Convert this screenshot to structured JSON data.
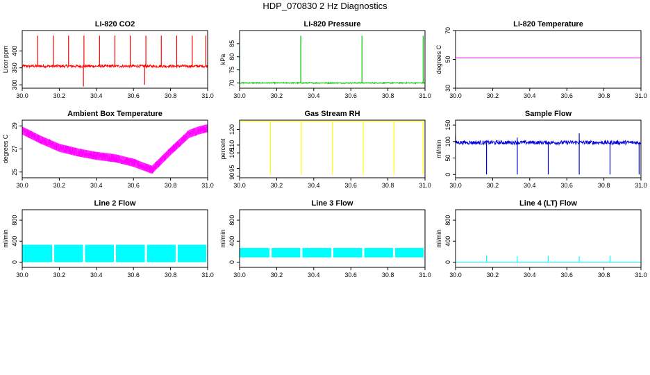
{
  "figure": {
    "title": "HDP_070830  2 Hz Diagnostics"
  },
  "chart_data": [
    {
      "type": "line",
      "title": "Li-820 CO2",
      "xlabel": "",
      "ylabel": "Licor ppm",
      "xlim": [
        30.0,
        31.0
      ],
      "ylim": [
        290,
        460
      ],
      "x_ticks": [
        30.0,
        30.2,
        30.4,
        30.6,
        30.8,
        31.0
      ],
      "x_tick_labels": [
        "30.0",
        "30.2",
        "30.4",
        "30.6",
        "30.8",
        "31.0"
      ],
      "y_ticks": [
        300,
        350,
        400
      ],
      "y_tick_labels": [
        "300",
        "350",
        "400"
      ],
      "color": "#ff0000",
      "series": [
        {
          "baseline": 355,
          "noise": 4,
          "spikes": [
            [
              30.083,
              445
            ],
            [
              30.167,
              445
            ],
            [
              30.25,
              445
            ],
            [
              30.333,
              445
            ],
            [
              30.417,
              445
            ],
            [
              30.5,
              445
            ],
            [
              30.583,
              445
            ],
            [
              30.667,
              445
            ],
            [
              30.75,
              445
            ],
            [
              30.833,
              445
            ],
            [
              30.917,
              445
            ],
            [
              30.99,
              445
            ],
            [
              30.33,
              295
            ],
            [
              30.66,
              300
            ]
          ],
          "points": [
            [
              30.0,
              355
            ],
            [
              31.0,
              355
            ]
          ]
        }
      ]
    },
    {
      "type": "line",
      "title": "Li-820 Pressure",
      "xlabel": "",
      "ylabel": "kPa",
      "xlim": [
        30.0,
        31.0
      ],
      "ylim": [
        68,
        90
      ],
      "x_ticks": [
        30.0,
        30.2,
        30.4,
        30.6,
        30.8,
        31.0
      ],
      "x_tick_labels": [
        "30.0",
        "30.2",
        "30.4",
        "30.6",
        "30.8",
        "31.0"
      ],
      "y_ticks": [
        70,
        75,
        80,
        85
      ],
      "y_tick_labels": [
        "70",
        "75",
        "80",
        "85"
      ],
      "color": "#00bb00",
      "series": [
        {
          "baseline": 70,
          "noise": 0.2,
          "spikes": [
            [
              30.0,
              84
            ],
            [
              30.33,
              88
            ],
            [
              30.66,
              88
            ],
            [
              30.99,
              88
            ]
          ],
          "points": [
            [
              30.0,
              70
            ],
            [
              31.0,
              70
            ]
          ]
        }
      ]
    },
    {
      "type": "line",
      "title": "Li-820 Temperature",
      "xlabel": "",
      "ylabel": "degrees C",
      "xlim": [
        30.0,
        31.0
      ],
      "ylim": [
        30,
        70
      ],
      "x_ticks": [
        30.0,
        30.2,
        30.4,
        30.6,
        30.8,
        31.0
      ],
      "x_tick_labels": [
        "30.0",
        "30.2",
        "30.4",
        "30.6",
        "30.8",
        "31.0"
      ],
      "y_ticks": [
        30,
        50,
        70
      ],
      "y_tick_labels": [
        "30",
        "50",
        "70"
      ],
      "color": "#ff00ff",
      "series": [
        {
          "baseline": 51,
          "noise": 0,
          "spikes": [],
          "points": [
            [
              30.0,
              51
            ],
            [
              31.0,
              51
            ]
          ]
        }
      ]
    },
    {
      "type": "line",
      "title": "Ambient Box Temperature",
      "xlabel": "",
      "ylabel": "degrees C",
      "xlim": [
        30.0,
        31.0
      ],
      "ylim": [
        24.5,
        29.5
      ],
      "x_ticks": [
        30.0,
        30.2,
        30.4,
        30.6,
        30.8,
        31.0
      ],
      "x_tick_labels": [
        "30.0",
        "30.2",
        "30.4",
        "30.6",
        "30.8",
        "31.0"
      ],
      "y_ticks": [
        25,
        27,
        29
      ],
      "y_tick_labels": [
        "25",
        "27",
        "29"
      ],
      "color": "#ff00ff",
      "series": [
        {
          "noise": 0.35,
          "spikes": [],
          "points": [
            [
              30.0,
              28.6
            ],
            [
              30.1,
              27.8
            ],
            [
              30.2,
              27.1
            ],
            [
              30.3,
              26.7
            ],
            [
              30.4,
              26.4
            ],
            [
              30.5,
              26.2
            ],
            [
              30.6,
              25.8
            ],
            [
              30.7,
              25.2
            ],
            [
              30.8,
              26.8
            ],
            [
              30.9,
              28.3
            ],
            [
              30.95,
              28.6
            ],
            [
              31.0,
              28.8
            ]
          ]
        }
      ]
    },
    {
      "type": "line",
      "title": "Gas Stream RH",
      "xlabel": "",
      "ylabel": "percent",
      "xlim": [
        30.0,
        31.0
      ],
      "ylim": [
        89,
        126
      ],
      "x_ticks": [
        30.0,
        30.2,
        30.4,
        30.6,
        30.8,
        31.0
      ],
      "x_tick_labels": [
        "30.0",
        "30.2",
        "30.4",
        "30.6",
        "30.8",
        "31.0"
      ],
      "y_ticks": [
        90,
        95,
        105,
        110,
        120
      ],
      "y_tick_labels": [
        "90",
        "95",
        "105",
        "110",
        "120"
      ],
      "color": "#ffff00",
      "series": [
        {
          "baseline": 125,
          "noise": 0,
          "spikes": [
            [
              30.167,
              91
            ],
            [
              30.333,
              91
            ],
            [
              30.5,
              91
            ],
            [
              30.667,
              91
            ],
            [
              30.833,
              91
            ],
            [
              30.99,
              91
            ]
          ],
          "points": [
            [
              30.0,
              125
            ],
            [
              31.0,
              125
            ]
          ]
        }
      ]
    },
    {
      "type": "line",
      "title": "Sample Flow",
      "xlabel": "",
      "ylabel": "ml/min",
      "xlim": [
        30.0,
        31.0
      ],
      "ylim": [
        -10,
        165
      ],
      "x_ticks": [
        30.0,
        30.2,
        30.4,
        30.6,
        30.8,
        31.0
      ],
      "x_tick_labels": [
        "30.0",
        "30.2",
        "30.4",
        "30.6",
        "30.8",
        "31.0"
      ],
      "y_ticks": [
        0,
        50,
        100,
        150
      ],
      "y_tick_labels": [
        "0",
        "50",
        "100",
        "150"
      ],
      "color": "#0000dd",
      "series": [
        {
          "baseline": 97,
          "noise": 6,
          "spikes": [
            [
              30.167,
              0
            ],
            [
              30.333,
              0
            ],
            [
              30.5,
              0
            ],
            [
              30.667,
              0
            ],
            [
              30.833,
              0
            ],
            [
              30.99,
              0
            ],
            [
              30.0,
              118
            ],
            [
              30.333,
              112
            ],
            [
              30.667,
              125
            ]
          ],
          "points": [
            [
              30.0,
              97
            ],
            [
              31.0,
              97
            ]
          ]
        }
      ]
    },
    {
      "type": "line",
      "title": "Line 2 Flow",
      "xlabel": "",
      "ylabel": "ml/min",
      "xlim": [
        30.0,
        31.0
      ],
      "ylim": [
        -100,
        1000
      ],
      "x_ticks": [
        30.0,
        30.2,
        30.4,
        30.6,
        30.8,
        31.0
      ],
      "x_tick_labels": [
        "30.0",
        "30.2",
        "30.4",
        "30.6",
        "30.8",
        "31.0"
      ],
      "y_ticks": [
        0,
        400,
        800
      ],
      "y_tick_labels": [
        "0",
        "400",
        "800"
      ],
      "color": "#00ffff",
      "series": [
        {
          "band": [
            0,
            330
          ],
          "gaps": [
            30.167,
            30.333,
            30.5,
            30.667,
            30.833
          ],
          "spikes": []
        }
      ]
    },
    {
      "type": "line",
      "title": "Line 3 Flow",
      "xlabel": "",
      "ylabel": "ml/min",
      "xlim": [
        30.0,
        31.0
      ],
      "ylim": [
        -100,
        1000
      ],
      "x_ticks": [
        30.0,
        30.2,
        30.4,
        30.6,
        30.8,
        31.0
      ],
      "x_tick_labels": [
        "30.0",
        "30.2",
        "30.4",
        "30.6",
        "30.8",
        "31.0"
      ],
      "y_ticks": [
        0,
        400,
        800
      ],
      "y_tick_labels": [
        "0",
        "400",
        "800"
      ],
      "color": "#00ffff",
      "series": [
        {
          "band": [
            90,
            270
          ],
          "gaps": [
            30.167,
            30.333,
            30.5,
            30.667,
            30.833
          ],
          "spikes": []
        }
      ]
    },
    {
      "type": "line",
      "title": "Line 4 (LT) Flow",
      "xlabel": "",
      "ylabel": "ml/min",
      "xlim": [
        30.0,
        31.0
      ],
      "ylim": [
        -100,
        1000
      ],
      "x_ticks": [
        30.0,
        30.2,
        30.4,
        30.6,
        30.8,
        31.0
      ],
      "x_tick_labels": [
        "30.0",
        "30.2",
        "30.4",
        "30.6",
        "30.8",
        "31.0"
      ],
      "y_ticks": [
        0,
        400,
        800
      ],
      "y_tick_labels": [
        "0",
        "400",
        "800"
      ],
      "color": "#00ffff",
      "series": [
        {
          "baseline": 0,
          "noise": 0,
          "spikes": [
            [
              30.167,
              130
            ],
            [
              30.333,
              110
            ],
            [
              30.5,
              120
            ],
            [
              30.667,
              110
            ],
            [
              30.833,
              120
            ]
          ],
          "points": [
            [
              30.0,
              0
            ],
            [
              31.0,
              0
            ]
          ]
        }
      ]
    }
  ]
}
